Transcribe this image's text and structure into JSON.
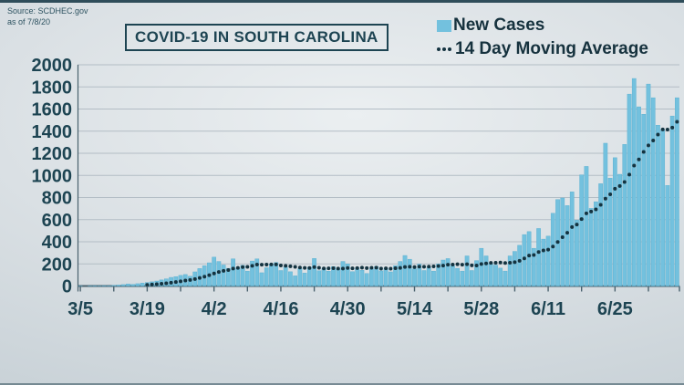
{
  "meta": {
    "source_line1": "Source: SCDHEC.gov",
    "source_line2": "as of 7/8/20"
  },
  "title": "COVID-19 IN SOUTH CAROLINA",
  "legend": {
    "new_cases": "New Cases",
    "moving_avg": "14 Day Moving Average"
  },
  "colors": {
    "bar": "#73c1de",
    "bar_edge": "#57aecf",
    "dot": "#143340",
    "text": "#1d4452",
    "grid": "#b3bdc5",
    "axis": "#4a626e",
    "accent_strip": "#2f4d5a"
  },
  "chart_data": {
    "type": "bar",
    "title": "COVID-19 IN SOUTH CAROLINA",
    "x_start_date": "3/5/20",
    "x_end_date": "7/8/20",
    "x_cadence": "daily",
    "x_tick_labels": [
      "3/5",
      "3/19",
      "4/2",
      "4/16",
      "4/30",
      "5/14",
      "5/28",
      "6/11",
      "6/25"
    ],
    "x_tick_interval_days": 14,
    "y_ticks": [
      0,
      200,
      400,
      600,
      800,
      1000,
      1200,
      1400,
      1600,
      1800,
      2000
    ],
    "ylim": [
      0,
      2000
    ],
    "grid": true,
    "legend_position": "top-right",
    "series": [
      {
        "name": "New Cases",
        "type": "bar",
        "values": [
          1,
          0,
          1,
          2,
          1,
          3,
          2,
          6,
          9,
          13,
          19,
          15,
          21,
          26,
          32,
          38,
          45,
          55,
          65,
          78,
          85,
          96,
          104,
          88,
          128,
          158,
          183,
          210,
          261,
          222,
          190,
          160,
          246,
          158,
          187,
          135,
          226,
          245,
          120,
          165,
          197,
          213,
          140,
          172,
          129,
          92,
          158,
          117,
          170,
          249,
          138,
          161,
          134,
          176,
          155,
          222,
          200,
          130,
          165,
          142,
          113,
          155,
          178,
          137,
          163,
          128,
          184,
          222,
          276,
          242,
          155,
          198,
          140,
          170,
          135,
          200,
          235,
          248,
          186,
          160,
          135,
          272,
          140,
          230,
          341,
          272,
          203,
          189,
          162,
          135,
          272,
          313,
          368,
          465,
          492,
          341,
          520,
          424,
          451,
          658,
          782,
          796,
          727,
          851,
          595,
          1005,
          1081,
          702,
          762,
          925,
          1291,
          975,
          1160,
          1010,
          1280,
          1735,
          1876,
          1620,
          1553,
          1826,
          1702,
          1454,
          1413,
          909,
          1537,
          1702
        ]
      },
      {
        "name": "14 Day Moving Average",
        "type": "dotted_line",
        "derivation": "trailing 14-day mean of New Cases values",
        "end_value_approx": 1484
      }
    ]
  }
}
